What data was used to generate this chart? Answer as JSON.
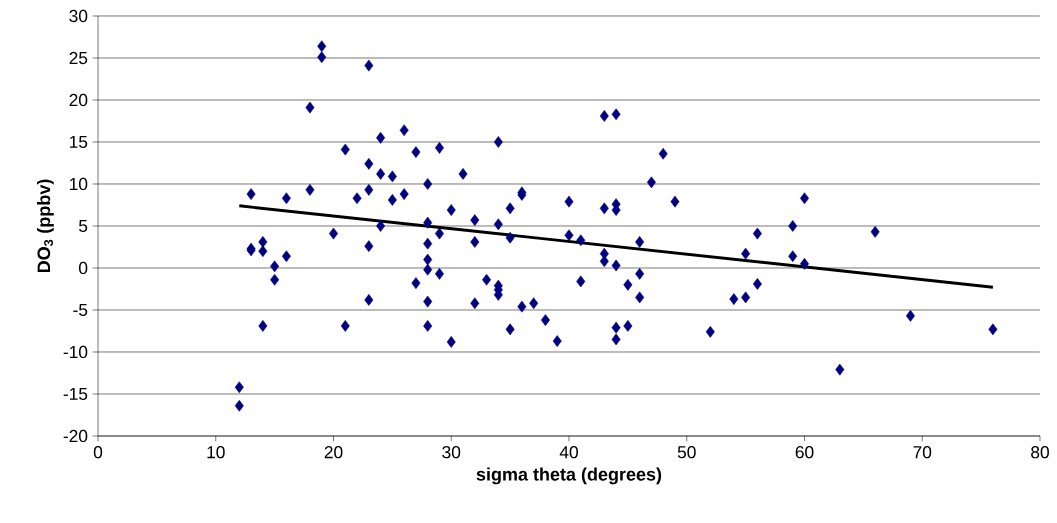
{
  "chart_data": {
    "type": "scatter",
    "xlabel": "sigma theta (degrees)",
    "ylabel": "DO$_{3}$ (ppbv)",
    "xlim": [
      0,
      80
    ],
    "xticks": [
      0,
      10,
      20,
      30,
      40,
      50,
      60,
      70,
      80
    ],
    "ylim": [
      -20,
      30
    ],
    "yticks": [
      -20,
      -15,
      -10,
      -5,
      0,
      5,
      10,
      15,
      20,
      25,
      30
    ],
    "grid": "y",
    "series": [
      {
        "color": "#000080",
        "marker": "diamond",
        "x": [
          12,
          12,
          13,
          13,
          13,
          14,
          14,
          14,
          15,
          15,
          16,
          16,
          18,
          18,
          19,
          19,
          20,
          21,
          21,
          22,
          23,
          23,
          23,
          23,
          23,
          24,
          24,
          24,
          25,
          25,
          26,
          26,
          27,
          27,
          28,
          28,
          28,
          28,
          28,
          28,
          28,
          29,
          29,
          29,
          30,
          30,
          31,
          32,
          32,
          32,
          33,
          34,
          34,
          34,
          34,
          34,
          35,
          35,
          35,
          36,
          36,
          36,
          37,
          38,
          39,
          40,
          40,
          41,
          41,
          43,
          43,
          43,
          43,
          44,
          44,
          44,
          44,
          44,
          44,
          45,
          45,
          46,
          46,
          46,
          47,
          48,
          49,
          52,
          54,
          55,
          55,
          56,
          56,
          59,
          59,
          60,
          60,
          63,
          66,
          69,
          76
        ],
        "values": [
          -14.2,
          -16.4,
          8.8,
          2.3,
          2.1,
          3.1,
          2,
          -6.9,
          0.2,
          -1.4,
          8.3,
          1.4,
          19.1,
          9.3,
          26.4,
          25.1,
          4.1,
          14.1,
          -6.9,
          8.3,
          24.1,
          12.4,
          9.3,
          2.6,
          -3.8,
          15.5,
          11.2,
          5,
          10.9,
          8.1,
          16.4,
          8.8,
          13.8,
          -1.8,
          10,
          5.4,
          2.9,
          1,
          -0.2,
          -4,
          -6.9,
          14.3,
          4.1,
          -0.7,
          6.9,
          -8.8,
          11.2,
          5.7,
          3.1,
          -4.2,
          -1.4,
          15,
          5.2,
          -2.1,
          -2.6,
          -3.2,
          7.1,
          3.6,
          -7.3,
          9,
          8.7,
          -4.6,
          -4.2,
          -6.2,
          -8.7,
          7.9,
          3.9,
          3.3,
          -1.6,
          18.1,
          7.1,
          1.7,
          0.8,
          18.3,
          7.6,
          6.9,
          0.3,
          -7.1,
          -8.5,
          -2,
          -6.9,
          3.1,
          -0.7,
          -3.5,
          10.2,
          13.6,
          7.9,
          -7.6,
          -3.7,
          1.7,
          -3.5,
          4.1,
          -1.9,
          5,
          1.4,
          8.3,
          0.5,
          -12.1,
          4.3,
          -5.7,
          -7.3
        ]
      },
      {
        "type": "line",
        "color": "#000000",
        "marker": "none",
        "line_style": "solid",
        "x": [
          12,
          76
        ],
        "values": [
          7.4,
          -2.3
        ]
      }
    ]
  }
}
